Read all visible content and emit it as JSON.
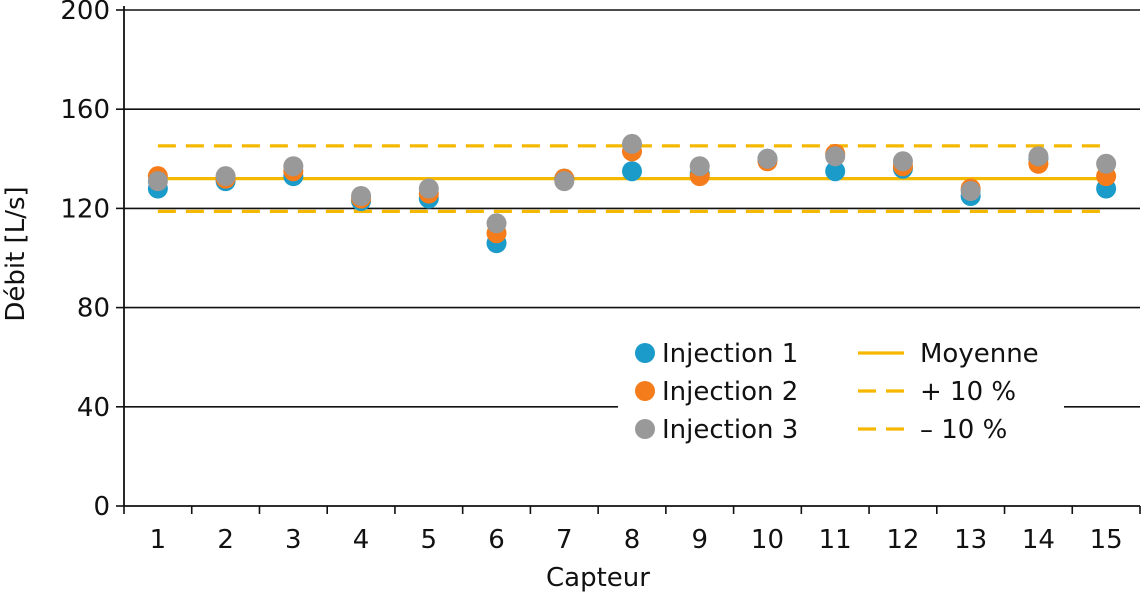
{
  "chart_data": {
    "type": "scatter",
    "xlabel": "Capteur",
    "ylabel": "Débit [L/s]",
    "categories": [
      "1",
      "2",
      "3",
      "4",
      "5",
      "6",
      "7",
      "8",
      "9",
      "10",
      "11",
      "12",
      "13",
      "14",
      "15"
    ],
    "ylim": [
      0,
      200
    ],
    "yticks": [
      "0",
      "40",
      "80",
      "120",
      "160",
      "200"
    ],
    "grid": true,
    "legend_position": "bottom-right",
    "series": [
      {
        "name": "Injection 1",
        "color": "#1a9bc9",
        "values": [
          128,
          131,
          133,
          123,
          124,
          106,
          132,
          135,
          134,
          140,
          135,
          136,
          125,
          140,
          128
        ]
      },
      {
        "name": "Injection 2",
        "color": "#f57c1a",
        "values": [
          133,
          132,
          135,
          124,
          126,
          110,
          132,
          143,
          133,
          139,
          142,
          137,
          128,
          138,
          133
        ]
      },
      {
        "name": "Injection 3",
        "color": "#999999",
        "values": [
          131,
          133,
          137,
          125,
          128,
          114,
          131,
          146,
          137,
          140,
          141,
          139,
          127,
          141,
          138
        ]
      }
    ],
    "reference_lines": [
      {
        "name": "Moyenne",
        "value": 132,
        "style": "solid",
        "color": "#f5b800"
      },
      {
        "name": "+ 10 %",
        "value": 145.2,
        "style": "dashed",
        "color": "#f5b800"
      },
      {
        "name": "– 10 %",
        "value": 118.8,
        "style": "dashed",
        "color": "#f5b800"
      }
    ]
  }
}
